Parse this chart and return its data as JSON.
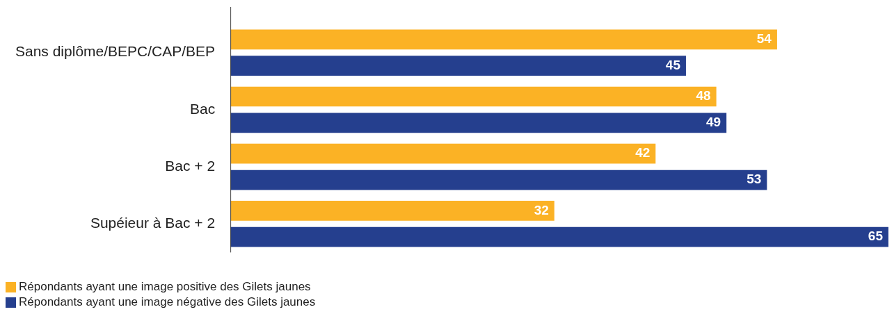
{
  "chart_data": {
    "type": "bar",
    "orientation": "horizontal",
    "categories": [
      "Sans diplôme/BEPC/CAP/BEP",
      "Bac",
      "Bac + 2",
      "Supéieur à Bac + 2"
    ],
    "series": [
      {
        "name": "Répondants ayant une image positive des Gilets jaunes",
        "color": "#fbb225",
        "values": [
          54,
          48,
          42,
          32
        ]
      },
      {
        "name": "Répondants ayant une image négative des Gilets jaunes",
        "color": "#253f8e",
        "values": [
          45,
          49,
          53,
          65
        ]
      }
    ],
    "xlim": [
      0,
      65
    ],
    "data_labels": true,
    "grid": false,
    "legend": "bottom left",
    "tick_labels": "y"
  }
}
